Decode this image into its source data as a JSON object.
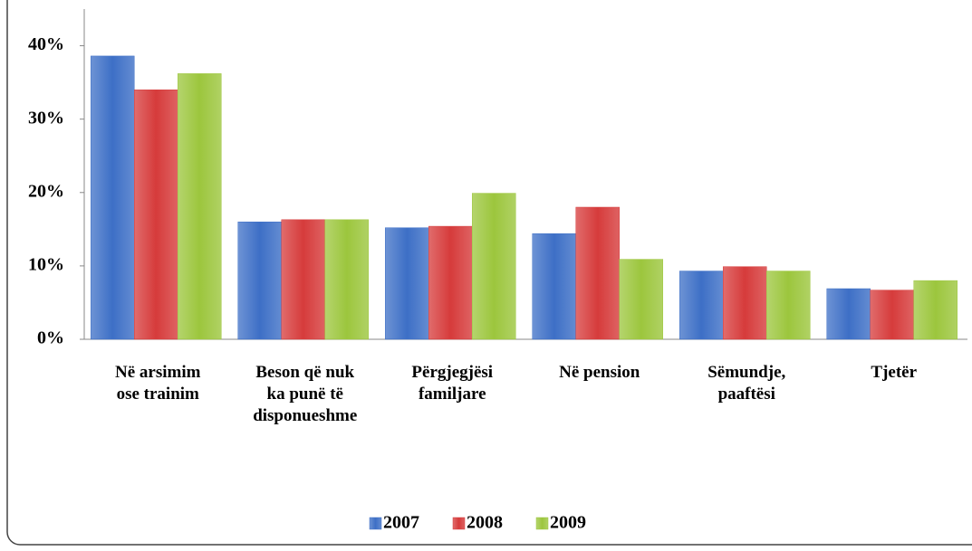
{
  "chart_data": {
    "type": "bar",
    "categories": [
      "Në arsimim\nose trainim",
      "Beson që nuk\nka punë të\ndisponueshme",
      "Përgjegjësi\nfamiljare",
      "Në pension",
      "Sëmundje,\npaaftësi",
      "Tjetër"
    ],
    "series": [
      {
        "name": "2007",
        "color": "#3d6fc6",
        "values": [
          38.6,
          16.0,
          15.2,
          14.4,
          9.3,
          6.9
        ]
      },
      {
        "name": "2008",
        "color": "#d63b3b",
        "values": [
          34.0,
          16.3,
          15.4,
          18.0,
          9.9,
          6.7
        ]
      },
      {
        "name": "2009",
        "color": "#9cc63d",
        "values": [
          36.2,
          16.3,
          19.9,
          10.9,
          9.3,
          8.0
        ]
      }
    ],
    "ylim": [
      0,
      45
    ],
    "yticks": [
      {
        "value": 0,
        "label": "0%"
      },
      {
        "value": 10,
        "label": "10%"
      },
      {
        "value": 20,
        "label": "20%"
      },
      {
        "value": 30,
        "label": "30%"
      },
      {
        "value": 40,
        "label": "40%"
      }
    ],
    "grid": false,
    "legend": "bottom"
  }
}
